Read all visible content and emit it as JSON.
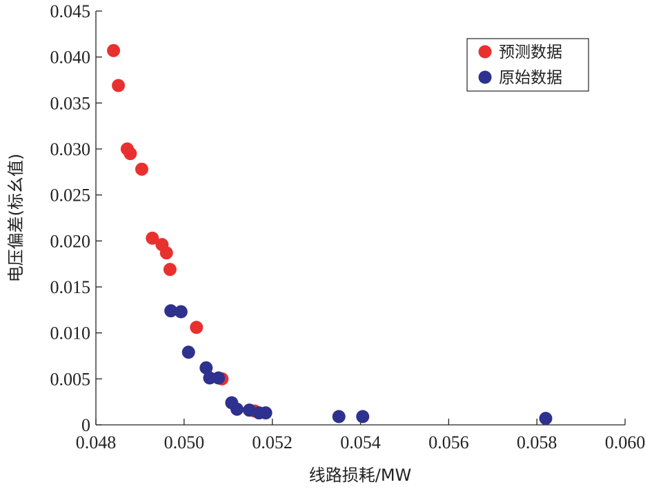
{
  "chart_data": {
    "type": "scatter",
    "title": "",
    "xlabel": "线路损耗/MW",
    "ylabel": "电压偏差(标幺值)",
    "xlim": [
      0.048,
      0.06
    ],
    "ylim": [
      0,
      0.045
    ],
    "x_ticks": [
      "0.048",
      "0.050",
      "0.052",
      "0.054",
      "0.056",
      "0.058",
      "0.060"
    ],
    "x_tick_values": [
      0.048,
      0.05,
      0.052,
      0.054,
      0.056,
      0.058,
      0.06
    ],
    "y_ticks": [
      "0",
      "0.005",
      "0.010",
      "0.015",
      "0.020",
      "0.025",
      "0.030",
      "0.035",
      "0.040",
      "0.045"
    ],
    "y_tick_values": [
      0,
      0.005,
      0.01,
      0.015,
      0.02,
      0.025,
      0.03,
      0.035,
      0.04,
      0.045
    ],
    "grid": false,
    "legend_position": "top-right",
    "series": [
      {
        "name": "预测数据",
        "color": "#e8312f",
        "points": [
          [
            0.0484,
            0.0407
          ],
          [
            0.04851,
            0.0369
          ],
          [
            0.04871,
            0.03
          ],
          [
            0.04878,
            0.0295
          ],
          [
            0.04904,
            0.0278
          ],
          [
            0.04928,
            0.0203
          ],
          [
            0.0495,
            0.0196
          ],
          [
            0.0496,
            0.0187
          ],
          [
            0.04968,
            0.0169
          ],
          [
            0.05028,
            0.0106
          ],
          [
            0.05086,
            0.005
          ],
          [
            0.0516,
            0.0015
          ]
        ]
      },
      {
        "name": "原始数据",
        "color": "#2e318e",
        "points": [
          [
            0.0497,
            0.0124
          ],
          [
            0.04993,
            0.0123
          ],
          [
            0.0501,
            0.0079
          ],
          [
            0.0505,
            0.0062
          ],
          [
            0.05058,
            0.0051
          ],
          [
            0.05078,
            0.0051
          ],
          [
            0.05108,
            0.0024
          ],
          [
            0.0512,
            0.0017
          ],
          [
            0.05148,
            0.0016
          ],
          [
            0.0517,
            0.0013
          ],
          [
            0.05185,
            0.0013
          ],
          [
            0.05351,
            0.0009
          ],
          [
            0.05405,
            0.0009
          ],
          [
            0.0582,
            0.0007
          ]
        ]
      }
    ]
  }
}
